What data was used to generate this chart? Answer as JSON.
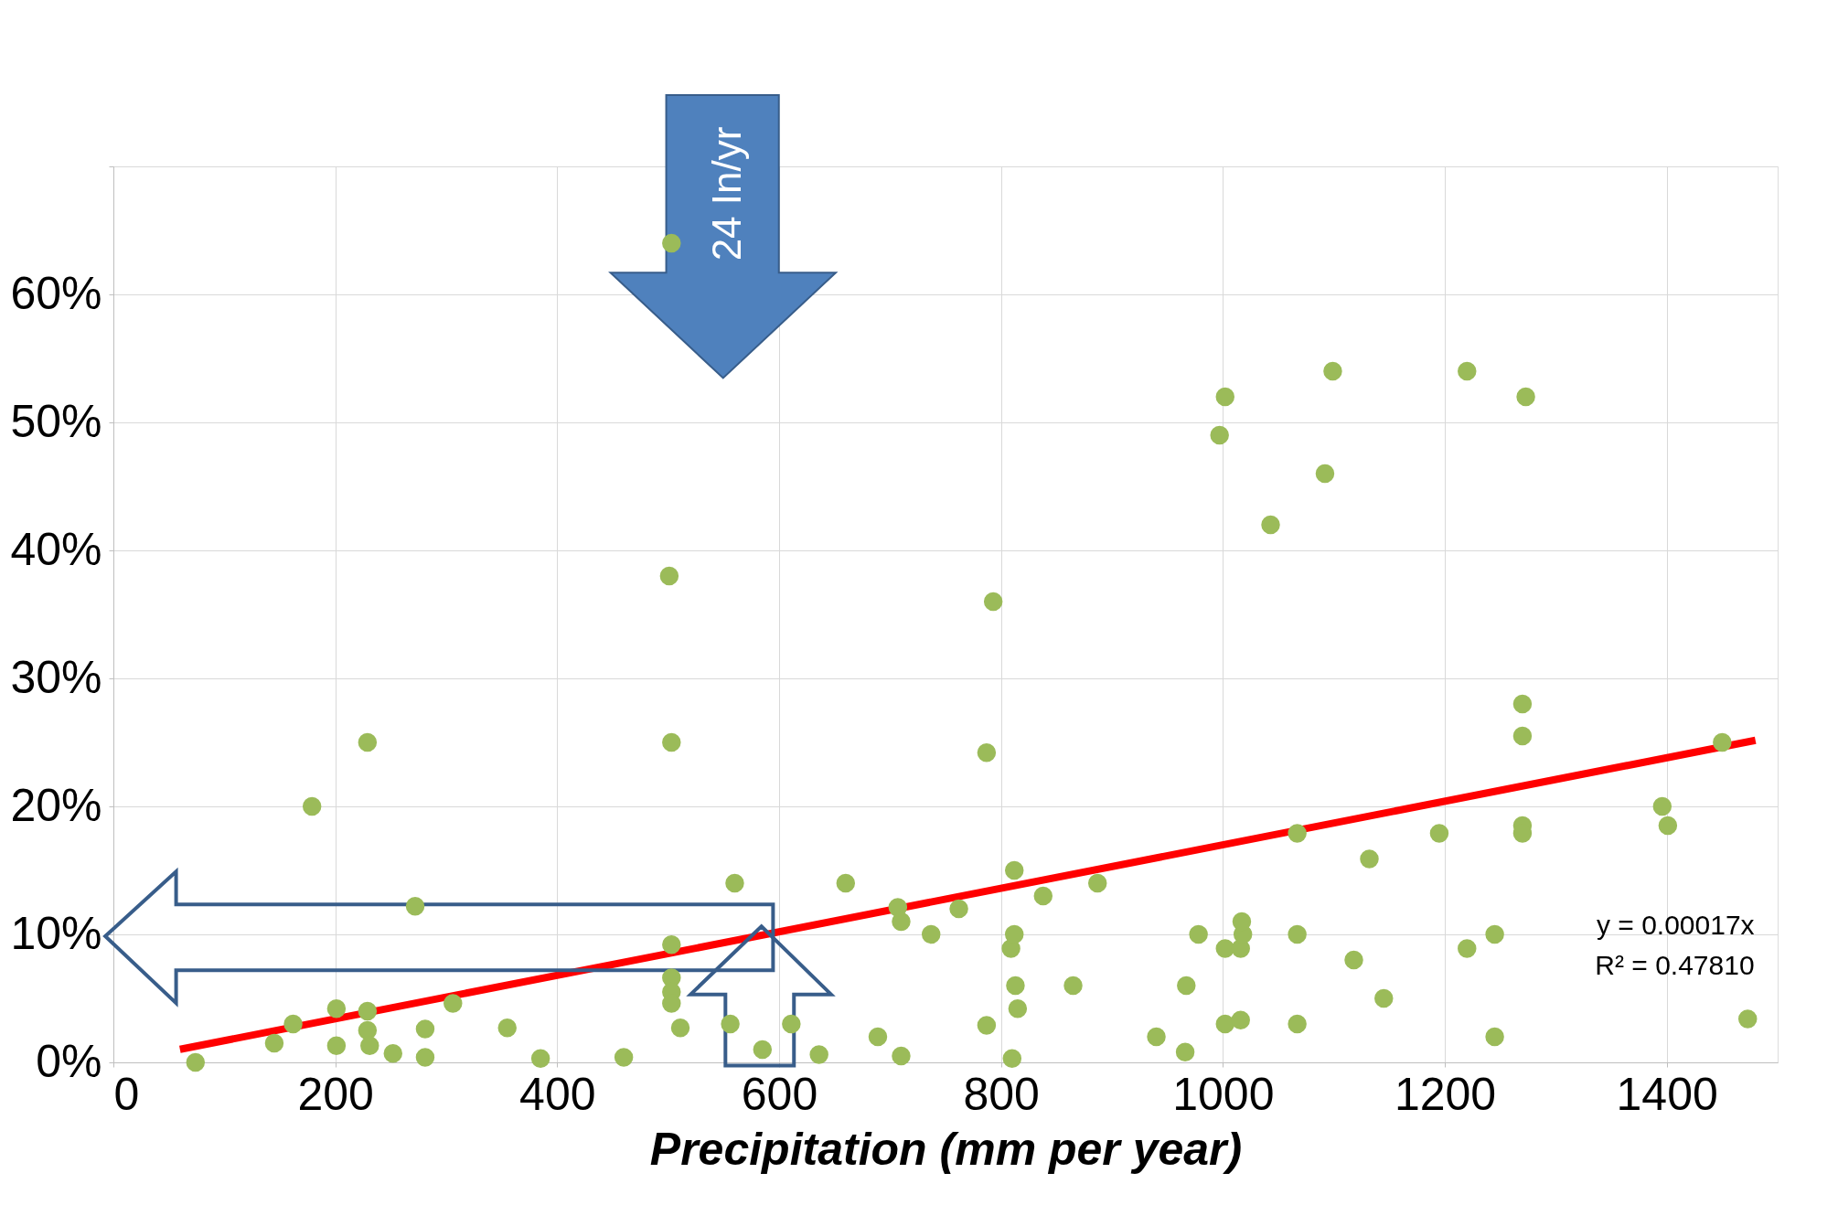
{
  "chart_data": {
    "type": "scatter",
    "xlabel": "Precipitation (mm per year)",
    "xlim": [
      0,
      1500
    ],
    "xticks": [
      0,
      200,
      400,
      600,
      800,
      1000,
      1200,
      1400
    ],
    "ylim": [
      0,
      70
    ],
    "yticks": [
      {
        "value": 0,
        "label": "0%"
      },
      {
        "value": 10,
        "label": "10%"
      },
      {
        "value": 20,
        "label": "20%"
      },
      {
        "value": 30,
        "label": "30%"
      },
      {
        "value": 40,
        "label": "40%"
      },
      {
        "value": 50,
        "label": "50%"
      },
      {
        "value": 60,
        "label": "60%"
      },
      {
        "value": 70,
        "label": null
      }
    ],
    "grid": true,
    "marker": "circle",
    "annotations": [
      "24 In/yr",
      "y = 0.00017x",
      "R² = 0.47810"
    ],
    "series": [
      {
        "color": "#9bbb59",
        "x": [
          74,
          145,
          162,
          201,
          201,
          229,
          229,
          231,
          252,
          229,
          179,
          272,
          281,
          281,
          306,
          355,
          385,
          460,
          501,
          503,
          503,
          503,
          503,
          503,
          503,
          511,
          556,
          560,
          585,
          611,
          636,
          660,
          689,
          707,
          710,
          710,
          737,
          762,
          787,
          787,
          793,
          810,
          812,
          809,
          812,
          813,
          815,
          838,
          865,
          887,
          940,
          966,
          967,
          978,
          997,
          1002,
          1002,
          1002,
          1016,
          1016,
          1018,
          1017,
          1043,
          1067,
          1067,
          1067,
          1092,
          1099,
          1118,
          1132,
          1145,
          1195,
          1220,
          1220,
          1245,
          1245,
          1273,
          1270,
          1270,
          1270,
          1270,
          1396,
          1401,
          1450,
          1473
        ],
        "values": [
          0,
          1.5,
          3,
          4.2,
          1.3,
          4,
          2.5,
          1.3,
          0.7,
          25,
          20,
          12.2,
          2.6,
          0.4,
          4.6,
          2.7,
          0.3,
          0.4,
          38,
          25,
          64,
          9.2,
          6.6,
          5.5,
          4.6,
          2.7,
          3,
          14,
          1.0,
          3,
          0.6,
          14,
          2,
          12.1,
          11,
          0.5,
          10,
          12,
          2.9,
          24.2,
          36,
          0.3,
          15,
          8.9,
          10,
          6,
          4.2,
          13,
          6,
          14,
          2,
          0.8,
          6,
          10,
          49,
          52,
          8.9,
          3,
          3.3,
          8.9,
          10,
          11,
          42,
          17.9,
          10,
          3,
          46,
          54,
          8,
          15.9,
          5,
          17.9,
          54,
          8.9,
          10,
          2,
          52,
          28,
          25.5,
          18.5,
          17.9,
          20,
          18.5,
          25,
          3.4
        ]
      },
      {
        "type": "line",
        "marker": "none",
        "color": "#ff0000",
        "x": [
          60,
          1480
        ],
        "values": [
          1.02,
          25.16
        ]
      }
    ]
  }
}
